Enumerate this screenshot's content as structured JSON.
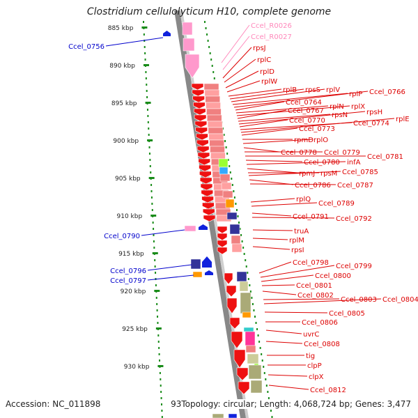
{
  "title": "Clostridium cellulolyticum H10, complete genome",
  "footer": {
    "accession": "Accession: NC_011898",
    "summary": "Topology: circular; Length: 4,068,724 bp; Genes: 3,477",
    "partial_tick": "93"
  },
  "colors": {
    "forward_gene": "#ee1111",
    "reverse_gene": "#1122dd",
    "rna_gene": "#ff99cc",
    "label_text": "#dd0000",
    "rna_label_text": "#ff88bb",
    "reverse_label_text": "#0000cc",
    "ruler": "#1a8c1a",
    "backbone": "#888888",
    "cog_colors": [
      "#f08080",
      "#ffa0a0",
      "#cccc99",
      "#aaaa77",
      "#ff9900",
      "#33aaff",
      "#99ff33",
      "#333399",
      "#ff3399",
      "#33cccc"
    ]
  },
  "ruler": {
    "ticks": [
      "885 kbp",
      "890 kbp",
      "895 kbp",
      "900 kbp",
      "905 kbp",
      "910 kbp",
      "915 kbp",
      "920 kbp",
      "925 kbp",
      "930 kbp"
    ]
  },
  "labels": {
    "rna": [
      "Ccel_R0026",
      "Ccel_R0027"
    ],
    "reverse": [
      "Ccel_0756",
      "Ccel_0790",
      "Ccel_0796",
      "Ccel_0797"
    ],
    "forward": [
      "rpsJ",
      "rplC",
      "rplD",
      "rplW",
      "rplB",
      "rpsS",
      "rplV",
      "rplP",
      "Ccel_0766",
      "Ccel_0764",
      "rplN",
      "rplX",
      "Ccel_0767",
      "rpsN",
      "rpsH",
      "Ccel_0770",
      "Ccel_0774",
      "rplE",
      "Ccel_0773",
      "rpmD",
      "rplO",
      "Ccel_0778",
      "Ccel_0779",
      "Ccel_0781",
      "Ccel_0780",
      "infA",
      "rpmJ",
      "rpsM",
      "Ccel_0785",
      "Ccel_0786",
      "Ccel_0787",
      "rplQ",
      "Ccel_0789",
      "Ccel_0791",
      "Ccel_0792",
      "truA",
      "rplM",
      "rpsI",
      "Ccel_0798",
      "Ccel_0799",
      "Ccel_0800",
      "Ccel_0801",
      "Ccel_0802",
      "Ccel_0803",
      "Ccel_0804",
      "Ccel_0805",
      "Ccel_0806",
      "uvrC",
      "Ccel_0808",
      "tig",
      "clpP",
      "clpX",
      "Ccel_0812"
    ]
  }
}
